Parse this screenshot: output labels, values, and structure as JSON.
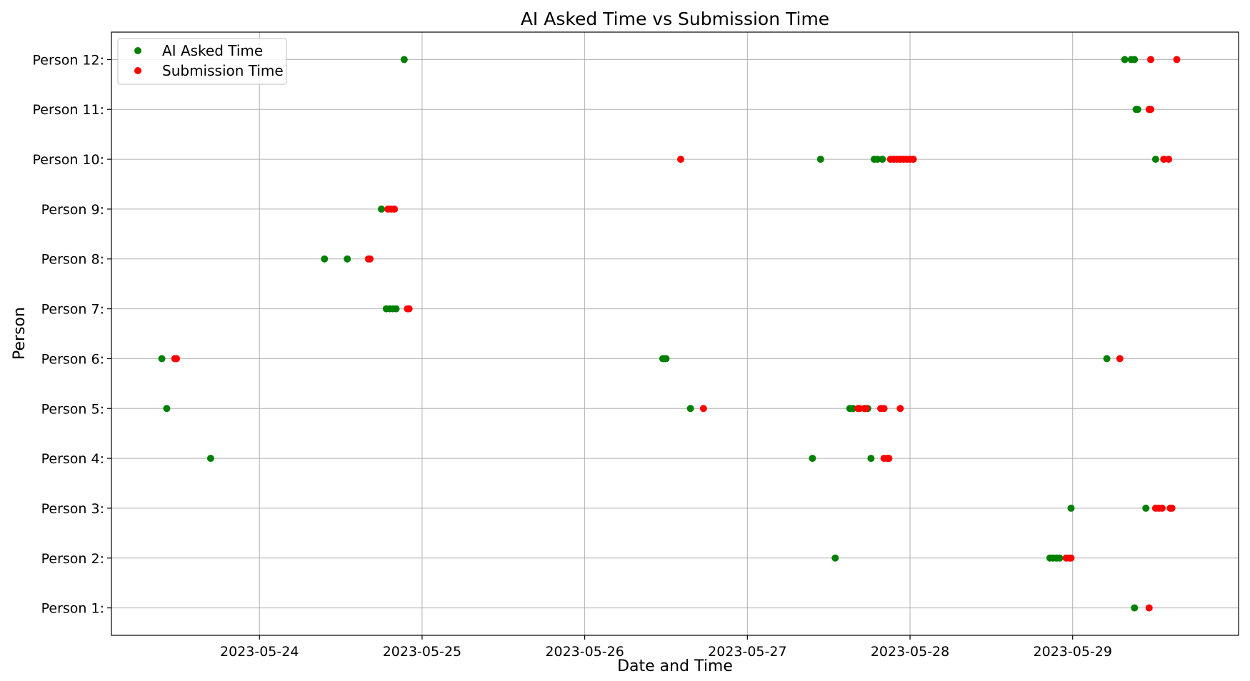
{
  "chart_data": {
    "type": "scatter",
    "title": "AI Asked Time vs Submission Time",
    "xlabel": "Date and Time",
    "ylabel": "Person",
    "x_unit": "days since 2023-05-24 00:00",
    "xlim": [
      -0.91,
      6.02
    ],
    "ylim": [
      0.45,
      12.55
    ],
    "x_ticks": [
      {
        "value": 0,
        "label": "2023-05-24"
      },
      {
        "value": 1,
        "label": "2023-05-25"
      },
      {
        "value": 2,
        "label": "2023-05-26"
      },
      {
        "value": 3,
        "label": "2023-05-27"
      },
      {
        "value": 4,
        "label": "2023-05-28"
      },
      {
        "value": 5,
        "label": "2023-05-29"
      }
    ],
    "y_ticks": [
      {
        "value": 1,
        "label": "Person 1:"
      },
      {
        "value": 2,
        "label": "Person 2:"
      },
      {
        "value": 3,
        "label": "Person 3:"
      },
      {
        "value": 4,
        "label": "Person 4:"
      },
      {
        "value": 5,
        "label": "Person 5:"
      },
      {
        "value": 6,
        "label": "Person 6:"
      },
      {
        "value": 7,
        "label": "Person 7:"
      },
      {
        "value": 8,
        "label": "Person 8:"
      },
      {
        "value": 9,
        "label": "Person 9:"
      },
      {
        "value": 10,
        "label": "Person 10:"
      },
      {
        "value": 11,
        "label": "Person 11:"
      },
      {
        "value": 12,
        "label": "Person 12:"
      }
    ],
    "grid": true,
    "legend_position": "top-left",
    "series": [
      {
        "name": "AI Asked Time",
        "color": "#008000",
        "points": [
          {
            "x": 5.38,
            "y": 1
          },
          {
            "x": 3.54,
            "y": 2
          },
          {
            "x": 4.86,
            "y": 2
          },
          {
            "x": 4.88,
            "y": 2
          },
          {
            "x": 4.9,
            "y": 2
          },
          {
            "x": 4.92,
            "y": 2
          },
          {
            "x": 4.99,
            "y": 3
          },
          {
            "x": 5.45,
            "y": 3
          },
          {
            "x": -0.3,
            "y": 4
          },
          {
            "x": 3.4,
            "y": 4
          },
          {
            "x": 3.76,
            "y": 4
          },
          {
            "x": -0.57,
            "y": 5
          },
          {
            "x": 2.65,
            "y": 5
          },
          {
            "x": 3.63,
            "y": 5
          },
          {
            "x": 3.65,
            "y": 5
          },
          {
            "x": 3.72,
            "y": 5
          },
          {
            "x": 3.74,
            "y": 5
          },
          {
            "x": -0.6,
            "y": 6
          },
          {
            "x": 2.48,
            "y": 6
          },
          {
            "x": 2.49,
            "y": 6
          },
          {
            "x": 2.5,
            "y": 6
          },
          {
            "x": 5.21,
            "y": 6
          },
          {
            "x": 0.78,
            "y": 7
          },
          {
            "x": 0.8,
            "y": 7
          },
          {
            "x": 0.82,
            "y": 7
          },
          {
            "x": 0.84,
            "y": 7
          },
          {
            "x": 0.4,
            "y": 8
          },
          {
            "x": 0.54,
            "y": 8
          },
          {
            "x": 0.75,
            "y": 9
          },
          {
            "x": 3.45,
            "y": 10
          },
          {
            "x": 3.78,
            "y": 10
          },
          {
            "x": 3.8,
            "y": 10
          },
          {
            "x": 3.83,
            "y": 10
          },
          {
            "x": 5.51,
            "y": 10
          },
          {
            "x": 5.39,
            "y": 11
          },
          {
            "x": 5.4,
            "y": 11
          },
          {
            "x": 0.89,
            "y": 12
          },
          {
            "x": 5.32,
            "y": 12
          },
          {
            "x": 5.36,
            "y": 12
          },
          {
            "x": 5.38,
            "y": 12
          }
        ]
      },
      {
        "name": "Submission Time",
        "color": "#ff0000",
        "points": [
          {
            "x": 5.47,
            "y": 1
          },
          {
            "x": 4.96,
            "y": 2
          },
          {
            "x": 4.98,
            "y": 2
          },
          {
            "x": 4.99,
            "y": 2
          },
          {
            "x": 5.51,
            "y": 3
          },
          {
            "x": 5.53,
            "y": 3
          },
          {
            "x": 5.55,
            "y": 3
          },
          {
            "x": 5.6,
            "y": 3
          },
          {
            "x": 5.61,
            "y": 3
          },
          {
            "x": 3.84,
            "y": 4
          },
          {
            "x": 3.86,
            "y": 4
          },
          {
            "x": 3.87,
            "y": 4
          },
          {
            "x": 2.73,
            "y": 5
          },
          {
            "x": 3.68,
            "y": 5
          },
          {
            "x": 3.69,
            "y": 5
          },
          {
            "x": 3.72,
            "y": 5
          },
          {
            "x": 3.73,
            "y": 5
          },
          {
            "x": 3.82,
            "y": 5
          },
          {
            "x": 3.84,
            "y": 5
          },
          {
            "x": 3.94,
            "y": 5
          },
          {
            "x": -0.52,
            "y": 6
          },
          {
            "x": -0.51,
            "y": 6
          },
          {
            "x": 5.29,
            "y": 6
          },
          {
            "x": 0.91,
            "y": 7
          },
          {
            "x": 0.92,
            "y": 7
          },
          {
            "x": 0.67,
            "y": 8
          },
          {
            "x": 0.68,
            "y": 8
          },
          {
            "x": 0.79,
            "y": 9
          },
          {
            "x": 0.81,
            "y": 9
          },
          {
            "x": 0.83,
            "y": 9
          },
          {
            "x": 2.59,
            "y": 10
          },
          {
            "x": 3.88,
            "y": 10
          },
          {
            "x": 3.9,
            "y": 10
          },
          {
            "x": 3.92,
            "y": 10
          },
          {
            "x": 3.94,
            "y": 10
          },
          {
            "x": 3.96,
            "y": 10
          },
          {
            "x": 3.98,
            "y": 10
          },
          {
            "x": 4.0,
            "y": 10
          },
          {
            "x": 4.02,
            "y": 10
          },
          {
            "x": 5.56,
            "y": 10
          },
          {
            "x": 5.59,
            "y": 10
          },
          {
            "x": 5.47,
            "y": 11
          },
          {
            "x": 5.48,
            "y": 11
          },
          {
            "x": 5.48,
            "y": 12
          },
          {
            "x": 5.64,
            "y": 12
          }
        ]
      }
    ]
  }
}
